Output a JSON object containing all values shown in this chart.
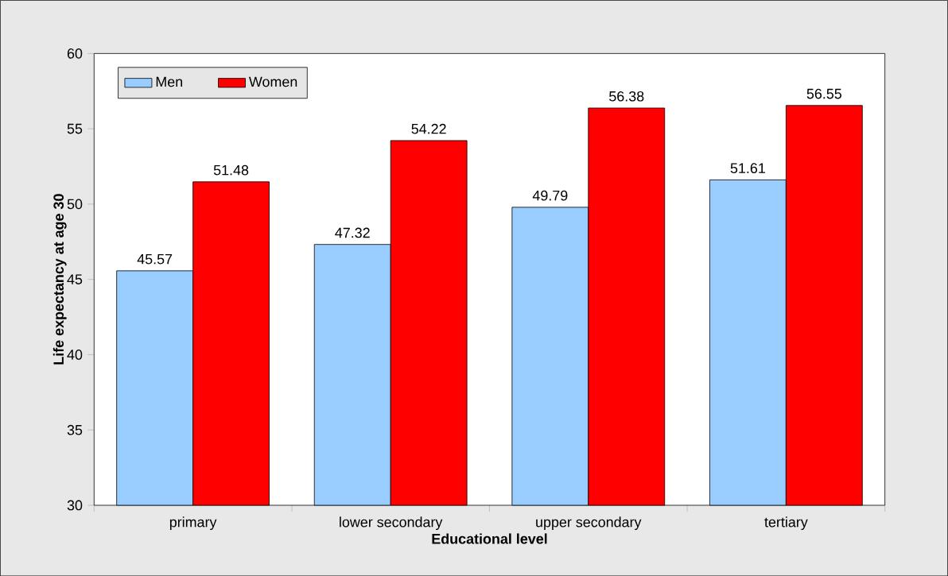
{
  "chart_data": {
    "type": "bar",
    "xlabel": "Educational level",
    "ylabel": "Life expectancy at age 30",
    "categories": [
      "primary",
      "lower secondary",
      "upper secondary",
      "tertiary"
    ],
    "series": [
      {
        "name": "Men",
        "color": "#99ccff",
        "values": [
          45.57,
          47.32,
          49.79,
          51.61
        ]
      },
      {
        "name": "Women",
        "color": "#ff0000",
        "values": [
          51.48,
          54.22,
          56.38,
          56.55
        ]
      }
    ],
    "ylim": [
      30,
      60
    ],
    "yticks": [
      30,
      35,
      40,
      45,
      50,
      55,
      60
    ],
    "data_labels": true,
    "legend": "top left",
    "grid": false
  }
}
